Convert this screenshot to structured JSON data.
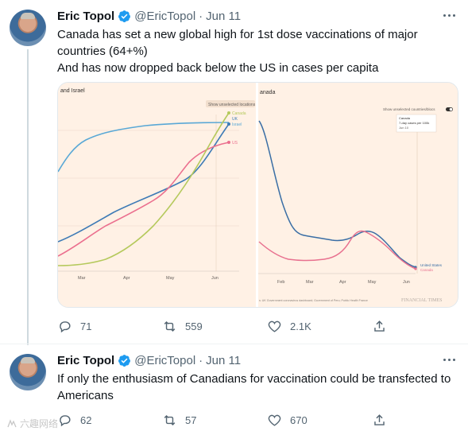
{
  "tweets": [
    {
      "name": "Eric Topol",
      "handle": "@EricTopol",
      "dot": "·",
      "date": "Jun 11",
      "lines": [
        "Canada has set a new global high for 1st dose vaccinations of major",
        "countries (64+%)",
        "And has now dropped back below the US in cases per capita"
      ],
      "replies": "71",
      "retweets": "559",
      "likes": "2.1K"
    },
    {
      "name": "Eric Topol",
      "handle": "@EricTopol",
      "dot": "·",
      "date": "Jun 11",
      "lines": [
        "If only the enthusiasm of Canadians for vaccination could be transfected to",
        "Americans"
      ],
      "replies": "62",
      "retweets": "57",
      "likes": "670"
    }
  ],
  "media": {
    "left_panel": {
      "title": "and Israel",
      "toggle_label": "Show unselected locations",
      "series_labels": [
        "Canada",
        "UK",
        "Israel",
        "US"
      ],
      "x_ticks": [
        "Mar",
        "Apr",
        "May",
        "Jun"
      ]
    },
    "right_panel": {
      "title": "anada",
      "toggle_label": "Show unselected countries/blocs",
      "tooltip_lines": [
        "Canada",
        "7-day cases per 100k",
        "Jun 10"
      ],
      "series_labels": [
        "United States",
        "Canada"
      ],
      "x_ticks": [
        "Feb",
        "Mar",
        "Apr",
        "May",
        "Jun"
      ],
      "source": "s: UK Government coronavirus dashboard; Government of Peru; Public Health France",
      "brand": "FINANCIAL TIMES"
    }
  },
  "colors": {
    "canada_vax": "#b5c95c",
    "uk": "#3e7bb6",
    "israel": "#59a8d6",
    "us": "#eb6f8e",
    "canada_cases_red": "#e8718f",
    "us_cases_blue": "#3a6ea5",
    "ft_background": "#fff1e5"
  },
  "watermark": "六趣网络"
}
